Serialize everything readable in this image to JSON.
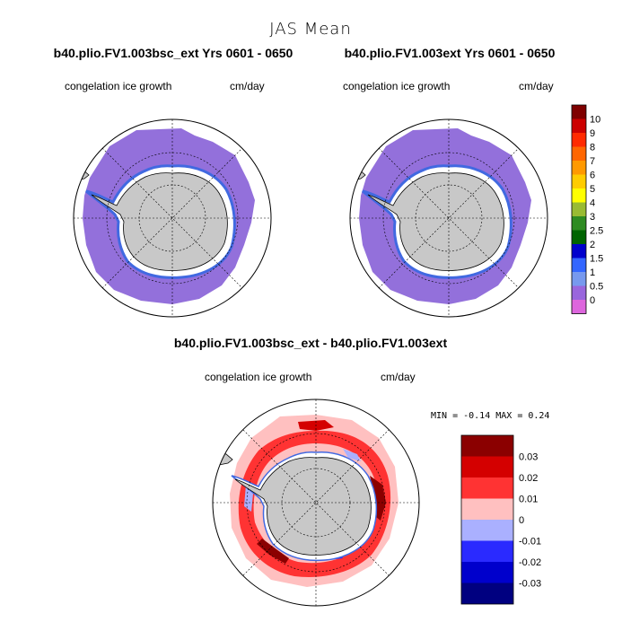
{
  "figure": {
    "suptitle": "JAS Mean",
    "minmax_text": "MIN =   -0.14  MAX =    0.24"
  },
  "chart_data": [
    {
      "type": "polar-map",
      "title": "b40.plio.FV1.003bsc_ext  Yrs 0601 - 0650",
      "variable": "congelation ice growth",
      "units": "cm/day",
      "field_summary": "sea ice zone mostly in the 0 to 0.5 cm/day class, thin 0.5 to 1.5 band along the coast"
    },
    {
      "type": "polar-map",
      "title": "b40.plio.FV1.003ext  Yrs 0601 - 0650",
      "variable": "congelation ice growth",
      "units": "cm/day",
      "field_summary": "sea ice zone mostly in the 0 to 0.5 cm/day class, thin 0.5 to 1.5 band along the coast"
    },
    {
      "type": "polar-map-difference",
      "title": "b40.plio.FV1.003bsc_ext - b40.plio.FV1.003ext",
      "variable": "congelation ice growth",
      "units": "cm/day",
      "min": -0.14,
      "max": 0.24
    }
  ],
  "colorbars": {
    "main": {
      "labels": [
        "10",
        "9",
        "8",
        "7",
        "6",
        "5",
        "4",
        "3",
        "2.5",
        "2",
        "1.5",
        "1",
        "0.5",
        "0"
      ],
      "colors": [
        "#7f0000",
        "#cc0000",
        "#ff2a00",
        "#ff6600",
        "#ff9900",
        "#ffcc00",
        "#ffff00",
        "#99bb33",
        "#2e8b22",
        "#006400",
        "#0000cc",
        "#3366ff",
        "#7799ee",
        "#9966dd",
        "#dd66dd"
      ]
    },
    "diff": {
      "labels": [
        "0.03",
        "0.02",
        "0.01",
        "0",
        "-0.01",
        "-0.02",
        "-0.03"
      ],
      "colors": [
        "#8b0000",
        "#d40000",
        "#ff3333",
        "#ffc0c0",
        "#aab0ff",
        "#2a2aff",
        "#0000cc",
        "#000080"
      ]
    }
  },
  "colors": {
    "ice_main": "#9370db",
    "land": "#c8c8c8",
    "coast_blue": "#4169e1"
  }
}
